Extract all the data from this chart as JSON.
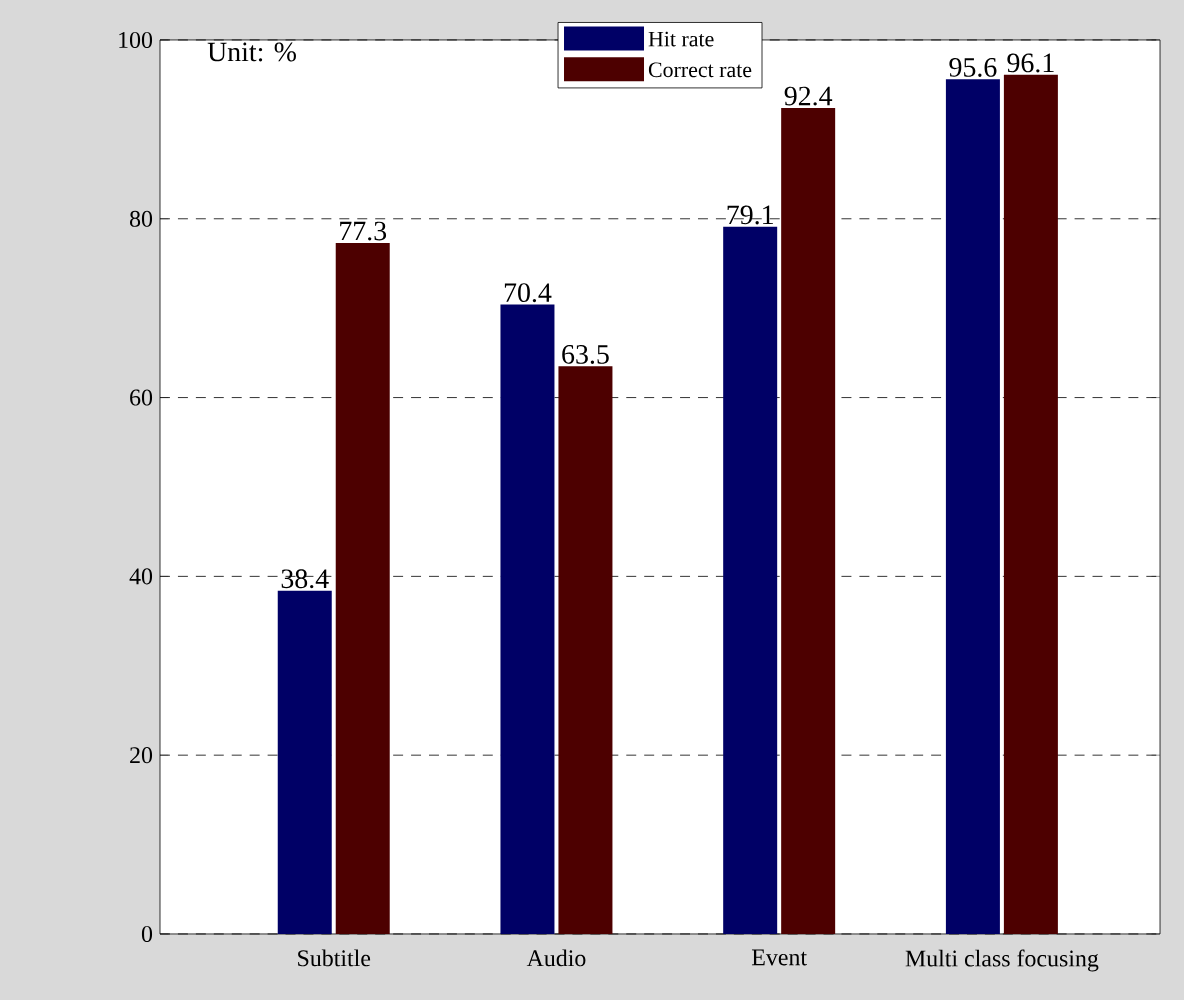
{
  "chart_data": {
    "type": "bar",
    "categories": [
      "Subtitle",
      "Audio",
      "Event",
      "Multi class focusing"
    ],
    "series": [
      {
        "name": "Hit rate",
        "color": "#000066",
        "values": [
          38.4,
          70.4,
          79.1,
          95.6
        ]
      },
      {
        "name": "Correct rate",
        "color": "#4d0000",
        "values": [
          77.3,
          63.5,
          92.4,
          96.1
        ]
      }
    ],
    "ylim": [
      0,
      100
    ],
    "yticks": [
      0,
      20,
      40,
      60,
      80,
      100
    ],
    "grid": "y",
    "legend": "top",
    "data_labels": true,
    "annotations": [
      "Unit: %"
    ]
  }
}
